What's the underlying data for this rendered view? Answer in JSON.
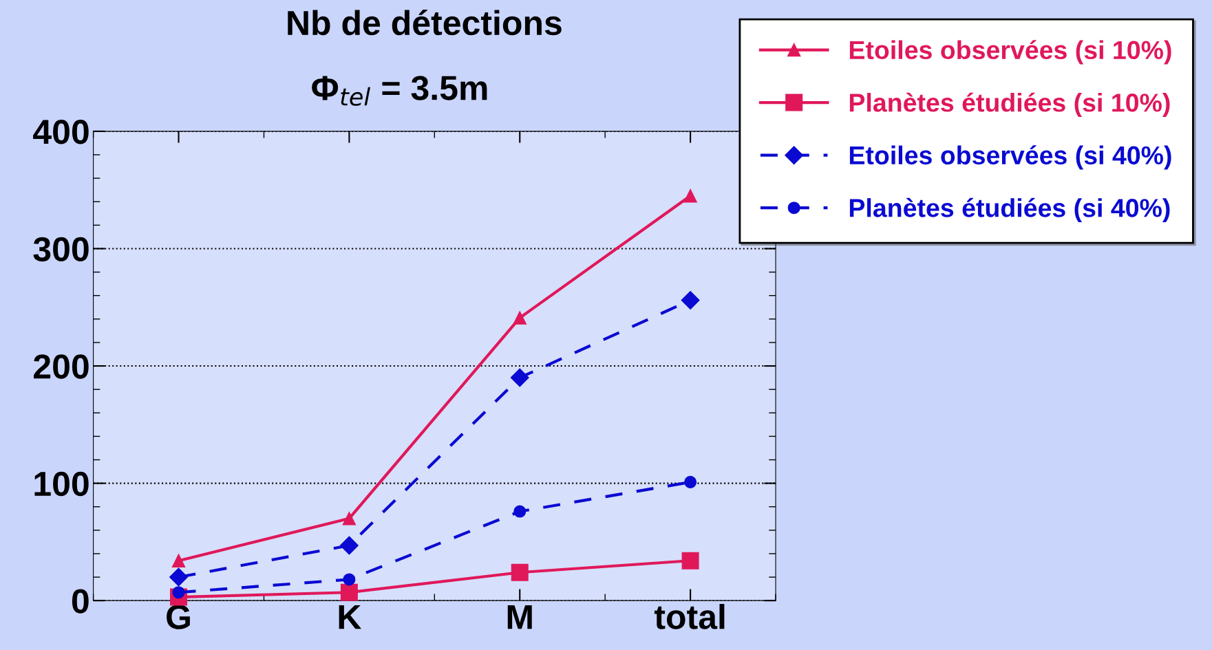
{
  "chart_data": {
    "type": "line",
    "title": "Nb de détections",
    "subtitle": "Φ$_{tel}$ = 3.5m",
    "categories": [
      "G",
      "K",
      "M",
      "total"
    ],
    "series": [
      {
        "name": "Etoiles observées (si 10%)",
        "color": "#e0185a",
        "marker": "triangle",
        "line_style": "solid",
        "values": [
          34,
          70,
          241,
          345
        ]
      },
      {
        "name": "Planètes étudiées (si 10%)",
        "color": "#e0185a",
        "marker": "square",
        "line_style": "solid",
        "values": [
          3,
          7,
          24,
          34
        ]
      },
      {
        "name": "Etoiles observées (si 40%)",
        "color": "#0a0ad2",
        "marker": "diamond",
        "line_style": "dashed",
        "values": [
          20,
          47,
          190,
          256
        ]
      },
      {
        "name": "Planètes étudiées (si 40%)",
        "color": "#0a0ad2",
        "marker": "circle",
        "line_style": "dashed",
        "values": [
          7,
          18,
          76,
          101
        ]
      }
    ],
    "ylim": [
      0,
      400
    ],
    "yticks": [
      0,
      100,
      200,
      300,
      400
    ],
    "grid": "y",
    "legend": "top right"
  }
}
